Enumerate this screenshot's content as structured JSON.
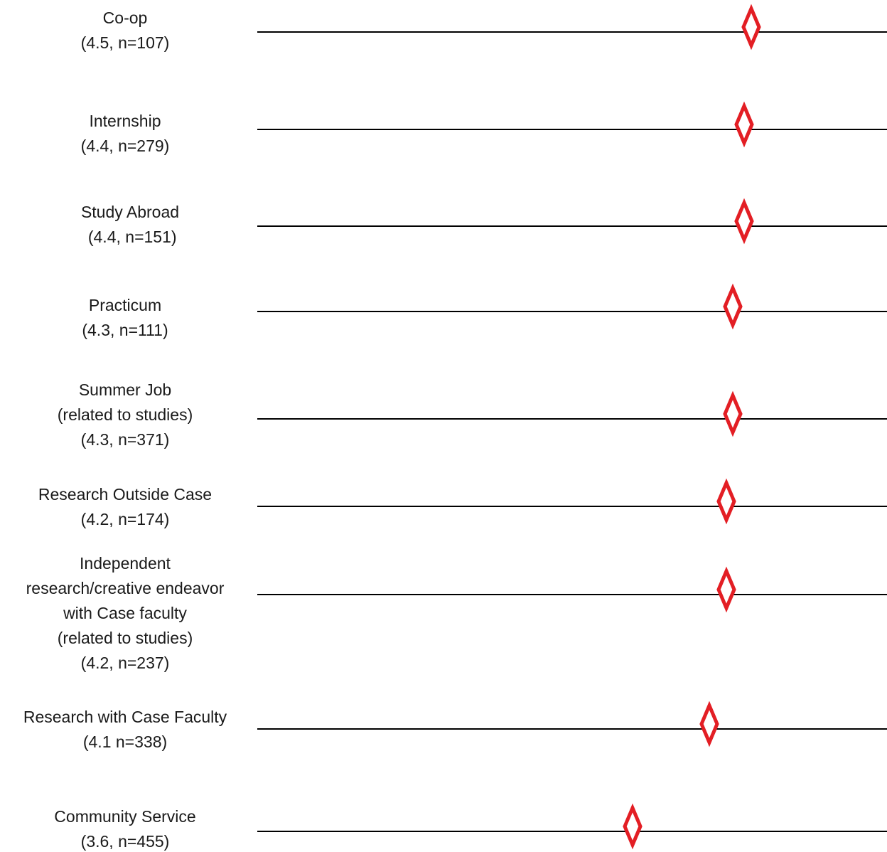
{
  "chart_data": {
    "type": "scatter",
    "marker": "diamond",
    "marker_color": "#e31e24",
    "line_color": "#000000",
    "categories": [
      [
        "Co-op",
        "(4.5, n=107)"
      ],
      [
        "Internship",
        "(4.4, n=279)"
      ],
      [
        "Study Abroad",
        " (4.4, n=151)"
      ],
      [
        "Practicum",
        "(4.3, n=111)"
      ],
      [
        "Summer Job",
        "(related to studies)",
        "(4.3, n=371)"
      ],
      [
        "Research Outside Case",
        "(4.2, n=174)"
      ],
      [
        "Independent",
        "research/creative endeavor",
        "with Case faculty",
        "(related to studies)",
        "(4.2, n=237)"
      ],
      [
        "Research with Case Faculty",
        "(4.1 n=338)"
      ],
      [
        "Community Service",
        "(3.6, n=455)"
      ]
    ],
    "values": [
      4.5,
      4.4,
      4.4,
      4.3,
      4.3,
      4.2,
      4.2,
      4.1,
      3.6
    ]
  }
}
